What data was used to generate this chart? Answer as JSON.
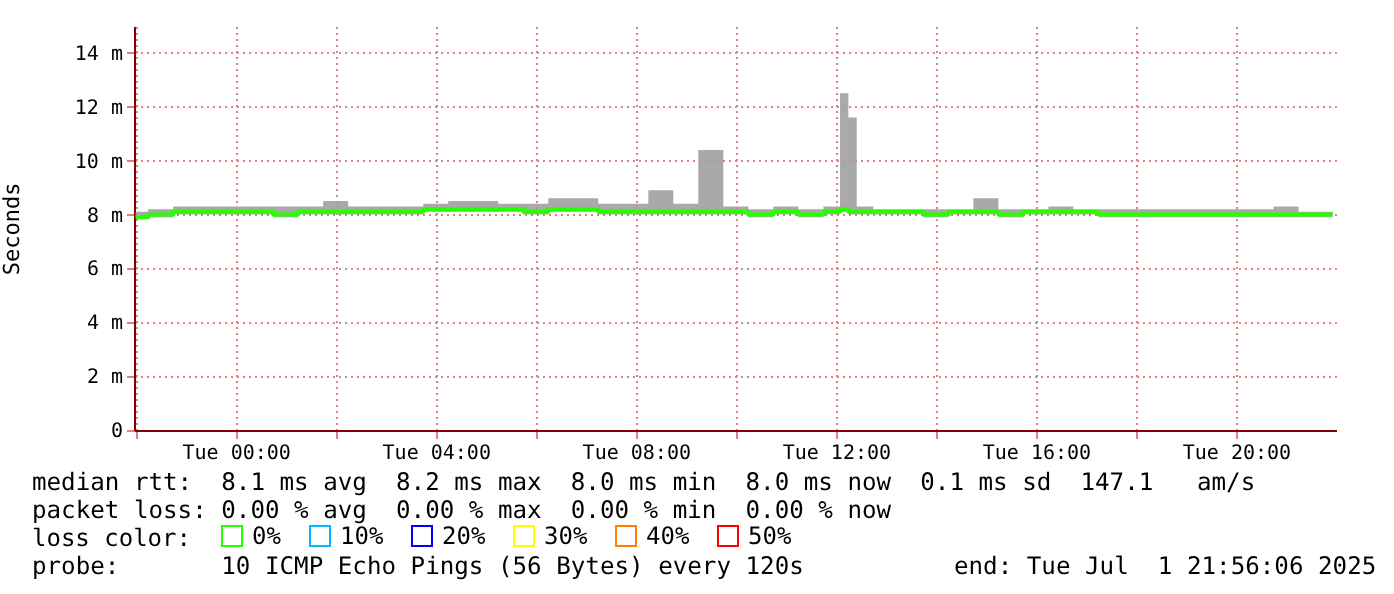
{
  "chart_data": {
    "type": "line",
    "ylabel": "Seconds",
    "x": [
      "2025-06-30T22:00",
      "2025-06-30T22:30",
      "2025-06-30T23:00",
      "2025-06-30T23:30",
      "2025-07-01T00:00",
      "2025-07-01T00:30",
      "2025-07-01T01:00",
      "2025-07-01T01:30",
      "2025-07-01T02:00",
      "2025-07-01T02:30",
      "2025-07-01T03:00",
      "2025-07-01T03:30",
      "2025-07-01T04:00",
      "2025-07-01T04:30",
      "2025-07-01T05:00",
      "2025-07-01T05:30",
      "2025-07-01T06:00",
      "2025-07-01T06:30",
      "2025-07-01T07:00",
      "2025-07-01T07:30",
      "2025-07-01T08:00",
      "2025-07-01T08:30",
      "2025-07-01T09:00",
      "2025-07-01T09:30",
      "2025-07-01T10:00",
      "2025-07-01T10:30",
      "2025-07-01T11:00",
      "2025-07-01T11:30",
      "2025-07-01T12:00",
      "2025-07-01T12:10",
      "2025-07-01T12:20",
      "2025-07-01T12:30",
      "2025-07-01T13:00",
      "2025-07-01T13:30",
      "2025-07-01T14:00",
      "2025-07-01T14:30",
      "2025-07-01T15:00",
      "2025-07-01T15:30",
      "2025-07-01T16:00",
      "2025-07-01T16:30",
      "2025-07-01T17:00",
      "2025-07-01T17:30",
      "2025-07-01T18:00",
      "2025-07-01T18:30",
      "2025-07-01T19:00",
      "2025-07-01T19:30",
      "2025-07-01T20:00",
      "2025-07-01T20:30",
      "2025-07-01T21:00",
      "2025-07-01T21:30",
      "2025-07-01T21:56"
    ],
    "series": [
      {
        "name": "0%",
        "color": "#26ff00",
        "values": [
          7.9,
          8.0,
          8.1,
          8.1,
          8.1,
          8.1,
          8.0,
          8.1,
          8.1,
          8.1,
          8.1,
          8.1,
          8.2,
          8.2,
          8.2,
          8.2,
          8.1,
          8.2,
          8.2,
          8.1,
          8.1,
          8.1,
          8.1,
          8.1,
          8.1,
          8.0,
          8.1,
          8.0,
          8.1,
          8.2,
          8.1,
          8.1,
          8.1,
          8.1,
          8.0,
          8.1,
          8.1,
          8.0,
          8.1,
          8.1,
          8.1,
          8.0,
          8.0,
          8.0,
          8.0,
          8.0,
          8.0,
          8.0,
          8.0,
          8.0,
          8.0
        ],
        "lower": [
          7.9,
          7.9,
          8.0,
          8.0,
          8.0,
          8.0,
          7.9,
          8.0,
          8.0,
          8.0,
          8.0,
          8.0,
          8.1,
          8.1,
          8.1,
          8.1,
          8.0,
          8.1,
          8.1,
          8.0,
          8.0,
          8.0,
          8.0,
          8.0,
          8.0,
          7.9,
          8.0,
          7.9,
          8.0,
          8.1,
          8.0,
          8.0,
          8.0,
          8.0,
          7.9,
          8.0,
          8.0,
          7.9,
          8.0,
          8.0,
          8.0,
          7.9,
          7.9,
          7.9,
          7.9,
          7.9,
          7.9,
          7.9,
          7.9,
          7.9,
          7.9
        ],
        "upper": [
          8.1,
          8.2,
          8.3,
          8.3,
          8.3,
          8.3,
          8.3,
          8.3,
          8.5,
          8.3,
          8.3,
          8.3,
          8.4,
          8.5,
          8.5,
          8.4,
          8.4,
          8.6,
          8.6,
          8.4,
          8.4,
          8.9,
          8.4,
          10.4,
          8.3,
          8.2,
          8.3,
          8.2,
          8.3,
          12.5,
          11.6,
          8.3,
          8.2,
          8.2,
          8.2,
          8.2,
          8.6,
          8.2,
          8.2,
          8.3,
          8.2,
          8.2,
          8.2,
          8.2,
          8.2,
          8.2,
          8.2,
          8.2,
          8.3,
          8.1,
          8.1
        ]
      },
      {
        "name": "10%",
        "color": "#00b8ff",
        "values": [
          null,
          null,
          null,
          null,
          null,
          null,
          null,
          null,
          null,
          null,
          null,
          null,
          null,
          null,
          null,
          null,
          null,
          null,
          null,
          null,
          null,
          null,
          null,
          null,
          null,
          null,
          null,
          null,
          null,
          null,
          null,
          null,
          null,
          null,
          null,
          null,
          null,
          null,
          null,
          null,
          null,
          null,
          null,
          null,
          null,
          null,
          null,
          null,
          null,
          null,
          null
        ]
      },
      {
        "name": "20%",
        "color": "#0000ff",
        "values": [
          null,
          null,
          null,
          null,
          null,
          null,
          null,
          null,
          null,
          null,
          null,
          null,
          null,
          null,
          null,
          null,
          null,
          null,
          null,
          null,
          null,
          null,
          null,
          null,
          null,
          null,
          null,
          null,
          null,
          null,
          null,
          null,
          null,
          null,
          null,
          null,
          null,
          null,
          null,
          null,
          null,
          null,
          null,
          null,
          null,
          null,
          null,
          null,
          null,
          null,
          null
        ]
      },
      {
        "name": "30%",
        "color": "#ffff00",
        "values": [
          null,
          null,
          null,
          null,
          null,
          null,
          null,
          null,
          null,
          null,
          null,
          null,
          null,
          null,
          null,
          null,
          null,
          null,
          null,
          null,
          null,
          null,
          null,
          null,
          null,
          null,
          null,
          null,
          null,
          null,
          null,
          null,
          null,
          null,
          null,
          null,
          null,
          null,
          null,
          null,
          null,
          null,
          null,
          null,
          null,
          null,
          null,
          null,
          null,
          null,
          null
        ]
      },
      {
        "name": "40%",
        "color": "#ff8000",
        "values": [
          null,
          null,
          null,
          null,
          null,
          null,
          null,
          null,
          null,
          null,
          null,
          null,
          null,
          null,
          null,
          null,
          null,
          null,
          null,
          null,
          null,
          null,
          null,
          null,
          null,
          null,
          null,
          null,
          null,
          null,
          null,
          null,
          null,
          null,
          null,
          null,
          null,
          null,
          null,
          null,
          null,
          null,
          null,
          null,
          null,
          null,
          null,
          null,
          null,
          null,
          null
        ]
      },
      {
        "name": "50%",
        "color": "#ff0000",
        "values": [
          null,
          null,
          null,
          null,
          null,
          null,
          null,
          null,
          null,
          null,
          null,
          null,
          null,
          null,
          null,
          null,
          null,
          null,
          null,
          null,
          null,
          null,
          null,
          null,
          null,
          null,
          null,
          null,
          null,
          null,
          null,
          null,
          null,
          null,
          null,
          null,
          null,
          null,
          null,
          null,
          null,
          null,
          null,
          null,
          null,
          null,
          null,
          null,
          null,
          null,
          null
        ]
      }
    ],
    "legend_title": "loss color:",
    "legend": "bottom",
    "xlim": [
      "2025-06-30T21:58",
      "2025-07-01T22:00"
    ],
    "xticks": [
      {
        "value": "2025-06-30T22:00",
        "label": null
      },
      {
        "value": "2025-07-01T00:00",
        "label": "Tue 00:00"
      },
      {
        "value": "2025-07-01T02:00",
        "label": null
      },
      {
        "value": "2025-07-01T04:00",
        "label": "Tue 04:00"
      },
      {
        "value": "2025-07-01T06:00",
        "label": null
      },
      {
        "value": "2025-07-01T08:00",
        "label": "Tue 08:00"
      },
      {
        "value": "2025-07-01T10:00",
        "label": null
      },
      {
        "value": "2025-07-01T12:00",
        "label": "Tue 12:00"
      },
      {
        "value": "2025-07-01T14:00",
        "label": null
      },
      {
        "value": "2025-07-01T16:00",
        "label": "Tue 16:00"
      },
      {
        "value": "2025-07-01T18:00",
        "label": null
      },
      {
        "value": "2025-07-01T20:00",
        "label": "Tue 20:00"
      }
    ],
    "ylim": [
      0,
      15
    ],
    "yticks": [
      0,
      {
        "value": 2,
        "label": "2 m"
      },
      {
        "value": 4,
        "label": "4 m"
      },
      {
        "value": 6,
        "label": "6 m"
      },
      {
        "value": 8,
        "label": "8 m"
      },
      {
        "value": 10,
        "label": "10 m"
      },
      {
        "value": 12,
        "label": "12 m"
      },
      {
        "value": 14,
        "label": "14 m"
      }
    ],
    "grid": true,
    "annotations": [
      "median rtt:  8.1 ms avg  8.2 ms max  8.0 ms min  8.0 ms now  0.1 ms sd  147.1   am/s",
      "packet loss: 0.00 % avg  0.00 % max  0.00 % min  0.00 % now",
      "probe:       10 ICMP Echo Pings (56 Bytes) every 120s",
      "end: Tue Jul  1 21:56:06 2025"
    ]
  }
}
